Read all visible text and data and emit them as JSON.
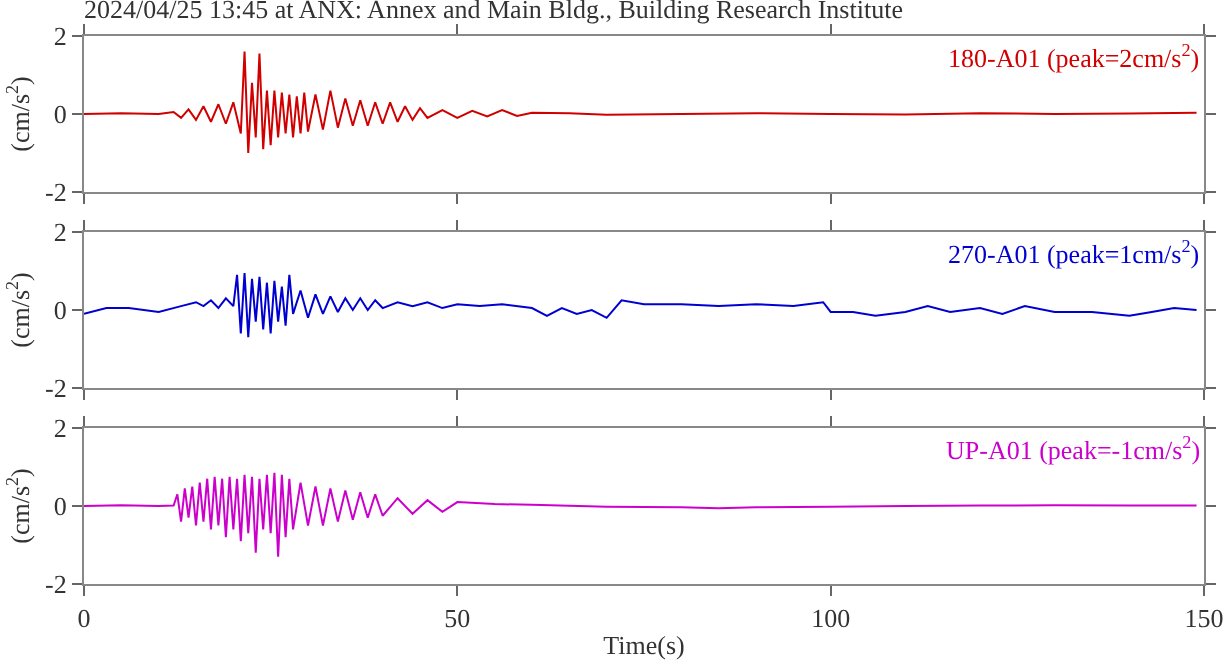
{
  "chart_data": [
    {
      "type": "line",
      "title": "2024/04/25 13:45 at ANX: Annex and Main Bldg., Building Research Institute",
      "ylabel": "(cm/s$^{2}$)",
      "annotations": [
        "180-A01 (peak=2cm/s$^{2}$)"
      ],
      "xlim": [
        0,
        150
      ],
      "xticks": [
        0,
        50,
        100,
        150
      ],
      "ylim": [
        -2,
        2
      ],
      "yticks": [
        -2,
        0,
        2
      ],
      "tick_labels": "y",
      "series": [
        {
          "color": "#d10000",
          "x": [
            0,
            5,
            10,
            12,
            13,
            14,
            15,
            16,
            17,
            18,
            19,
            20,
            21,
            21.5,
            22,
            22.5,
            23,
            23.5,
            24,
            24.5,
            25,
            25.5,
            26,
            26.5,
            27,
            27.5,
            28,
            28.5,
            29,
            29.5,
            30,
            31,
            32,
            33,
            34,
            35,
            36,
            37,
            38,
            39,
            40,
            41,
            42,
            43,
            44,
            45,
            46,
            48,
            50,
            52,
            54,
            56,
            58,
            60,
            65,
            70,
            80,
            90,
            100,
            110,
            120,
            130,
            140,
            149
          ],
          "values": [
            0,
            0.02,
            0,
            0.05,
            -0.1,
            0.12,
            -0.15,
            0.2,
            -0.2,
            0.25,
            -0.25,
            0.3,
            -0.5,
            1.6,
            -1.0,
            0.8,
            -0.6,
            1.55,
            -0.9,
            0.6,
            -0.8,
            0.6,
            -0.6,
            0.55,
            -0.5,
            0.5,
            -0.6,
            0.45,
            -0.5,
            0.55,
            -0.45,
            0.5,
            -0.4,
            0.6,
            -0.35,
            0.4,
            -0.3,
            0.35,
            -0.3,
            0.3,
            -0.25,
            0.3,
            -0.2,
            0.2,
            -0.15,
            0.15,
            -0.1,
            0.1,
            -0.1,
            0.08,
            -0.06,
            0.1,
            -0.05,
            0.03,
            0.02,
            -0.02,
            0,
            0.02,
            0,
            -0.01,
            0.02,
            0,
            0.01,
            0.03
          ]
        }
      ]
    },
    {
      "type": "line",
      "ylabel": "(cm/s$^{2}$)",
      "annotations": [
        "270-A01 (peak=1cm/s$^{2}$)"
      ],
      "xlim": [
        0,
        150
      ],
      "xticks": [
        0,
        50,
        100,
        150
      ],
      "ylim": [
        -2,
        2
      ],
      "yticks": [
        -2,
        0,
        2
      ],
      "tick_labels": "y",
      "series": [
        {
          "color": "#0000d1",
          "x": [
            0,
            3,
            6,
            10,
            13,
            15,
            16,
            17,
            18,
            19,
            20,
            20.5,
            21,
            21.5,
            22,
            22.5,
            23,
            23.5,
            24,
            24.5,
            25,
            25.5,
            26,
            26.5,
            27,
            27.5,
            28,
            29,
            30,
            31,
            32,
            33,
            34,
            35,
            36,
            37,
            38,
            39,
            40,
            42,
            44,
            46,
            48,
            50,
            53,
            56,
            60,
            62,
            64,
            66,
            68,
            70,
            72,
            75,
            80,
            85,
            90,
            95,
            99,
            100,
            103,
            106,
            110,
            113,
            116,
            120,
            123,
            126,
            130,
            135,
            140,
            143,
            146,
            149
          ],
          "values": [
            -0.1,
            0.05,
            0.05,
            -0.05,
            0.1,
            0.2,
            0.1,
            0.25,
            0.05,
            0.3,
            0.1,
            0.9,
            -0.6,
            0.95,
            -0.7,
            0.8,
            -0.3,
            0.85,
            -0.5,
            0.7,
            -0.6,
            0.75,
            -0.3,
            0.6,
            -0.4,
            0.9,
            -0.1,
            0.5,
            -0.2,
            0.4,
            -0.1,
            0.35,
            -0.05,
            0.3,
            0,
            0.3,
            0,
            0.25,
            0.05,
            0.2,
            0.1,
            0.2,
            0.05,
            0.15,
            0.1,
            0.15,
            0.05,
            -0.15,
            0.05,
            -0.1,
            0,
            -0.2,
            0.25,
            0.15,
            0.15,
            0.1,
            0.15,
            0.1,
            0.2,
            -0.05,
            -0.05,
            -0.15,
            -0.05,
            0.1,
            -0.05,
            0.05,
            -0.1,
            0.1,
            -0.05,
            -0.05,
            -0.15,
            -0.05,
            0.05,
            0
          ]
        }
      ]
    },
    {
      "type": "line",
      "xlabel": "Time(s)",
      "ylabel": "(cm/s$^{2}$)",
      "annotations": [
        "UP-A01 (peak=-1cm/s$^{2}$)"
      ],
      "xlim": [
        0,
        150
      ],
      "xticks": [
        0,
        50,
        100,
        150
      ],
      "ylim": [
        -2,
        2
      ],
      "yticks": [
        -2,
        0,
        2
      ],
      "series": [
        {
          "color": "#cc00cc",
          "x": [
            0,
            5,
            10,
            12,
            12.5,
            13,
            13.5,
            14,
            14.5,
            15,
            15.5,
            16,
            16.5,
            17,
            17.5,
            18,
            18.5,
            19,
            19.5,
            20,
            20.5,
            21,
            21.5,
            22,
            22.5,
            23,
            23.5,
            24,
            24.5,
            25,
            25.5,
            26,
            26.5,
            27,
            27.5,
            28,
            29,
            30,
            31,
            32,
            33,
            34,
            35,
            36,
            37,
            38,
            39,
            40,
            42,
            44,
            46,
            48,
            50,
            55,
            60,
            70,
            80,
            85,
            90,
            100,
            110,
            120,
            130,
            140,
            149
          ],
          "values": [
            0,
            0.02,
            0,
            0.01,
            0.3,
            -0.4,
            0.45,
            -0.3,
            0.5,
            -0.5,
            0.6,
            -0.4,
            0.7,
            -0.6,
            0.75,
            -0.5,
            0.7,
            -0.8,
            0.75,
            -0.6,
            0.7,
            -0.9,
            0.8,
            -0.7,
            0.75,
            -1.2,
            0.7,
            -0.6,
            0.8,
            -0.7,
            0.85,
            -1.3,
            0.8,
            -0.8,
            0.7,
            -0.6,
            0.6,
            -0.5,
            0.5,
            -0.5,
            0.45,
            -0.4,
            0.4,
            -0.35,
            0.35,
            -0.3,
            0.3,
            -0.25,
            0.2,
            -0.2,
            0.15,
            -0.15,
            0.1,
            0.05,
            0.03,
            -0.02,
            -0.03,
            -0.06,
            -0.03,
            -0.02,
            0,
            0.01,
            0.02,
            0.01,
            0.01
          ]
        }
      ]
    }
  ]
}
